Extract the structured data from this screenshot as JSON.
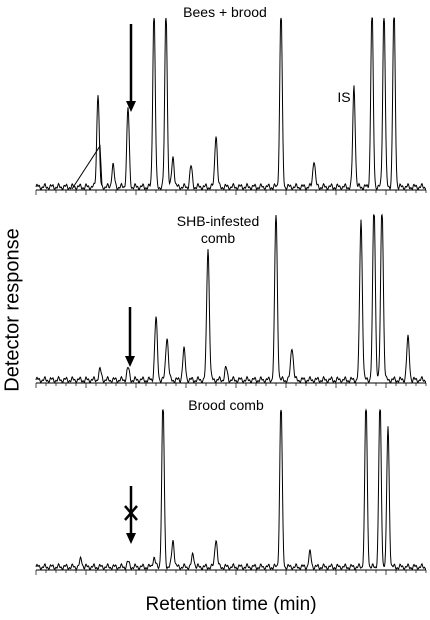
{
  "chart_data": {
    "type": "line",
    "ylabel": "Detector response",
    "xlabel": "Retention time (min)",
    "grid": false,
    "panels": [
      {
        "title": "Bees + brood",
        "annotations": [
          "IS"
        ],
        "arrow": "down",
        "peaks": [
          {
            "x": 48,
            "h": 0.0
          },
          {
            "x": 62,
            "h": 0.55
          },
          {
            "x": 77,
            "h": 0.13
          },
          {
            "x": 92,
            "h": 0.46
          },
          {
            "x": 118,
            "h": 1.05
          },
          {
            "x": 130,
            "h": 1.05
          },
          {
            "x": 137,
            "h": 0.18
          },
          {
            "x": 155,
            "h": 0.12
          },
          {
            "x": 180,
            "h": 0.31
          },
          {
            "x": 245,
            "h": 1.05
          },
          {
            "x": 278,
            "h": 0.16
          },
          {
            "x": 318,
            "h": 0.59
          },
          {
            "x": 336,
            "h": 1.05
          },
          {
            "x": 348,
            "h": 1.05
          },
          {
            "x": 358,
            "h": 1.05
          }
        ]
      },
      {
        "title": "SHB-infested\ncomb",
        "annotations": [],
        "arrow": "down",
        "peaks": [
          {
            "x": 64,
            "h": 0.06
          },
          {
            "x": 92,
            "h": 0.07
          },
          {
            "x": 120,
            "h": 0.37
          },
          {
            "x": 131,
            "h": 0.26
          },
          {
            "x": 148,
            "h": 0.18
          },
          {
            "x": 172,
            "h": 0.79
          },
          {
            "x": 190,
            "h": 0.07
          },
          {
            "x": 240,
            "h": 1.0
          },
          {
            "x": 256,
            "h": 0.2
          },
          {
            "x": 325,
            "h": 0.96
          },
          {
            "x": 338,
            "h": 1.05
          },
          {
            "x": 346,
            "h": 1.05
          },
          {
            "x": 372,
            "h": 0.25
          }
        ]
      },
      {
        "title": "Brood comb",
        "annotations": [],
        "arrow": "blocked",
        "peaks": [
          {
            "x": 45,
            "h": 0.05
          },
          {
            "x": 92,
            "h": 0.03
          },
          {
            "x": 118,
            "h": 0.06
          },
          {
            "x": 127,
            "h": 1.05
          },
          {
            "x": 137,
            "h": 0.17
          },
          {
            "x": 157,
            "h": 0.08
          },
          {
            "x": 180,
            "h": 0.18
          },
          {
            "x": 245,
            "h": 1.05
          },
          {
            "x": 274,
            "h": 0.09
          },
          {
            "x": 330,
            "h": 1.05
          },
          {
            "x": 344,
            "h": 1.05
          },
          {
            "x": 352,
            "h": 0.88
          }
        ]
      }
    ]
  }
}
